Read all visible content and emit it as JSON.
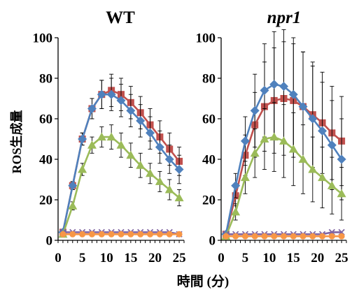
{
  "figure": {
    "ylabel": "ROS生成量",
    "xlabel": "時間 (分)"
  },
  "chart_data": [
    {
      "type": "line",
      "title": "WT",
      "title_italic": false,
      "xlabel": "時間 (分)",
      "ylabel": "ROS生成量",
      "xlim": [
        0,
        26
      ],
      "ylim": [
        0,
        100
      ],
      "xticks": [
        0,
        5,
        10,
        15,
        20,
        25
      ],
      "yticks": [
        0,
        20,
        40,
        60,
        80,
        100
      ],
      "grid": false,
      "x": [
        1,
        3,
        5,
        7,
        9,
        11,
        13,
        15,
        17,
        19,
        21,
        23,
        25
      ],
      "series": [
        {
          "color": "#c0504d",
          "marker": "square",
          "values": [
            4,
            27,
            50,
            65,
            72,
            74,
            72,
            68,
            63,
            57,
            51,
            45,
            39
          ],
          "errors": [
            1,
            2,
            3,
            5,
            7,
            8,
            8,
            8,
            8,
            8,
            8,
            8,
            7
          ]
        },
        {
          "color": "#4f81bd",
          "marker": "diamond",
          "values": [
            4,
            27,
            50,
            65,
            72,
            72,
            69,
            64,
            59,
            53,
            46,
            40,
            35
          ],
          "errors": [
            1,
            2,
            3,
            5,
            7,
            8,
            8,
            8,
            8,
            8,
            8,
            7,
            7
          ]
        },
        {
          "color": "#9bbb59",
          "marker": "triangle",
          "values": [
            3,
            17,
            35,
            47,
            51,
            51,
            47,
            42,
            37,
            33,
            29,
            25,
            21
          ],
          "errors": [
            1,
            2,
            3,
            4,
            5,
            6,
            6,
            6,
            6,
            5,
            5,
            5,
            4
          ]
        },
        {
          "color": "#8064a2",
          "marker": "x",
          "values": [
            4,
            4,
            4,
            4,
            4,
            4,
            4,
            4,
            4,
            4,
            4,
            4,
            3
          ],
          "errors": [
            0.5,
            0.5,
            0.5,
            0.5,
            0.5,
            0.5,
            0.5,
            0.5,
            0.5,
            0.5,
            0.5,
            0.5,
            0.5
          ]
        },
        {
          "color": "#f79646",
          "marker": "circle",
          "values": [
            3,
            3,
            3,
            3,
            3,
            3,
            3,
            3,
            3,
            3,
            3,
            3,
            3
          ],
          "errors": [
            0.5,
            0.5,
            0.5,
            0.5,
            0.5,
            0.5,
            0.5,
            0.5,
            0.5,
            0.5,
            0.5,
            0.5,
            0.5
          ]
        }
      ]
    },
    {
      "type": "line",
      "title": "npr1",
      "title_italic": true,
      "xlabel": "時間 (分)",
      "ylabel": "",
      "xlim": [
        0,
        26
      ],
      "ylim": [
        0,
        100
      ],
      "xticks": [
        0,
        5,
        10,
        15,
        20,
        25
      ],
      "yticks": [
        0,
        20,
        40,
        60,
        80,
        100
      ],
      "grid": false,
      "x": [
        1,
        3,
        5,
        7,
        9,
        11,
        13,
        15,
        17,
        19,
        21,
        23,
        25
      ],
      "series": [
        {
          "color": "#c0504d",
          "marker": "square",
          "values": [
            3,
            22,
            42,
            57,
            66,
            69,
            70,
            69,
            66,
            62,
            58,
            53,
            49
          ],
          "errors": [
            1,
            5,
            10,
            16,
            22,
            26,
            28,
            28,
            27,
            26,
            25,
            23,
            22
          ]
        },
        {
          "color": "#4f81bd",
          "marker": "diamond",
          "values": [
            3,
            27,
            49,
            64,
            74,
            77,
            76,
            72,
            66,
            60,
            54,
            47,
            40
          ],
          "errors": [
            1,
            6,
            12,
            18,
            23,
            26,
            28,
            28,
            27,
            26,
            24,
            22,
            20
          ]
        },
        {
          "color": "#9bbb59",
          "marker": "triangle",
          "values": [
            2,
            14,
            31,
            43,
            50,
            51,
            49,
            45,
            40,
            35,
            31,
            27,
            23
          ],
          "errors": [
            1,
            4,
            8,
            12,
            15,
            17,
            18,
            18,
            17,
            16,
            15,
            14,
            13
          ]
        },
        {
          "color": "#8064a2",
          "marker": "x",
          "values": [
            3,
            3,
            3,
            3,
            3,
            3,
            3,
            3,
            3,
            3,
            3,
            4,
            4
          ],
          "errors": [
            0.5,
            0.5,
            0.5,
            0.5,
            0.5,
            0.5,
            0.5,
            0.5,
            0.5,
            0.5,
            0.5,
            0.5,
            0.5
          ]
        },
        {
          "color": "#f79646",
          "marker": "circle",
          "values": [
            2,
            2,
            2,
            2,
            2,
            2,
            2,
            2,
            2,
            2,
            2,
            2,
            2
          ],
          "errors": [
            0.5,
            0.5,
            0.5,
            0.5,
            0.5,
            0.5,
            0.5,
            0.5,
            0.5,
            0.5,
            0.5,
            0.5,
            0.5
          ]
        }
      ]
    }
  ]
}
